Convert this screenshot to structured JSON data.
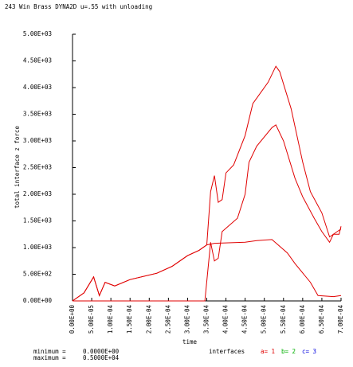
{
  "chart_data": {
    "type": "line",
    "title": "243 Win Brass DYNA2D u=.55 with unloading",
    "xlabel": "time",
    "ylabel": "total interface z force",
    "xlim": [
      0,
      0.0007
    ],
    "ylim": [
      0,
      5000
    ],
    "xticks": [
      {
        "value": 0,
        "label": "0.00E+00"
      },
      {
        "value": 5e-05,
        "label": "5.00E-05"
      },
      {
        "value": 0.0001,
        "label": "1.00E-04"
      },
      {
        "value": 0.00015,
        "label": "1.50E-04"
      },
      {
        "value": 0.0002,
        "label": "2.00E-04"
      },
      {
        "value": 0.00025,
        "label": "2.50E-04"
      },
      {
        "value": 0.0003,
        "label": "3.00E-04"
      },
      {
        "value": 0.00035,
        "label": "3.50E-04"
      },
      {
        "value": 0.0004,
        "label": "4.00E-04"
      },
      {
        "value": 0.00045,
        "label": "4.50E-04"
      },
      {
        "value": 0.0005,
        "label": "5.00E-04"
      },
      {
        "value": 0.00055,
        "label": "5.50E-04"
      },
      {
        "value": 0.0006,
        "label": "6.00E-04"
      },
      {
        "value": 0.00065,
        "label": "6.50E-04"
      },
      {
        "value": 0.0007,
        "label": "7.00E-04"
      }
    ],
    "yticks": [
      {
        "value": 0,
        "label": "0.00E+00"
      },
      {
        "value": 500,
        "label": "5.00E+02"
      },
      {
        "value": 1000,
        "label": "1.00E+03"
      },
      {
        "value": 1500,
        "label": "1.50E+03"
      },
      {
        "value": 2000,
        "label": "2.00E+03"
      },
      {
        "value": 2500,
        "label": "2.50E+03"
      },
      {
        "value": 3000,
        "label": "3.00E+03"
      },
      {
        "value": 3500,
        "label": "3.50E+03"
      },
      {
        "value": 4000,
        "label": "4.00E+03"
      },
      {
        "value": 4500,
        "label": "4.50E+03"
      },
      {
        "value": 5000,
        "label": "5.00E+03"
      }
    ],
    "line_color": "#e00000",
    "legend_title": "interfaces",
    "series": [
      {
        "name": "a= 1",
        "color": "#e00000",
        "x": [
          0,
          3e-05,
          5.5e-05,
          7e-05,
          8.5e-05,
          0.00011,
          0.00015,
          0.00022,
          0.00026,
          0.0003,
          0.00033,
          0.00035,
          0.00036,
          0.00037,
          0.00038,
          0.00039,
          0.0004,
          0.00042,
          0.00045,
          0.00047,
          0.00049,
          0.00051,
          0.00053,
          0.00054,
          0.00057,
          0.0006,
          0.00062,
          0.00065,
          0.00067,
          0.00069,
          0.0007
        ],
        "values": [
          0,
          150,
          450,
          100,
          350,
          280,
          400,
          520,
          650,
          850,
          950,
          1050,
          2050,
          2350,
          1850,
          1900,
          2400,
          2550,
          3100,
          3700,
          3900,
          4100,
          4400,
          4300,
          3600,
          2600,
          2050,
          1650,
          1200,
          1300,
          1350
        ]
      },
      {
        "name": "b= 2",
        "color": "#00b000",
        "x": [
          0,
          0.000345,
          0.00036,
          0.00037,
          0.00038,
          0.00039,
          0.00043,
          0.00045,
          0.00046,
          0.00048,
          0.00052,
          0.00053,
          0.00055,
          0.00058,
          0.0006,
          0.00063,
          0.00065,
          0.00067,
          0.00068,
          0.000695,
          0.0007
        ],
        "values": [
          0,
          0,
          1100,
          750,
          800,
          1300,
          1550,
          2000,
          2600,
          2900,
          3250,
          3300,
          3000,
          2300,
          1950,
          1550,
          1300,
          1100,
          1250,
          1250,
          1400
        ]
      },
      {
        "name": "c= 3",
        "color": "#0000e0",
        "x": [
          0,
          3e-05,
          5.5e-05,
          7e-05,
          8.5e-05,
          0.00011,
          0.00015,
          0.00022,
          0.00026,
          0.0003,
          0.00033,
          0.00035,
          0.00037,
          0.00045,
          0.00048,
          0.00052,
          0.00056,
          0.00058,
          0.00062,
          0.00064,
          0.00068,
          0.0007
        ],
        "values": [
          0,
          150,
          450,
          100,
          350,
          280,
          400,
          520,
          650,
          850,
          950,
          1050,
          1080,
          1100,
          1130,
          1150,
          900,
          700,
          350,
          100,
          80,
          100
        ]
      }
    ],
    "minimum_label": "minimum =",
    "minimum": "0.0000E+00",
    "maximum_label": "maximum =",
    "maximum": "0.5000E+04"
  }
}
